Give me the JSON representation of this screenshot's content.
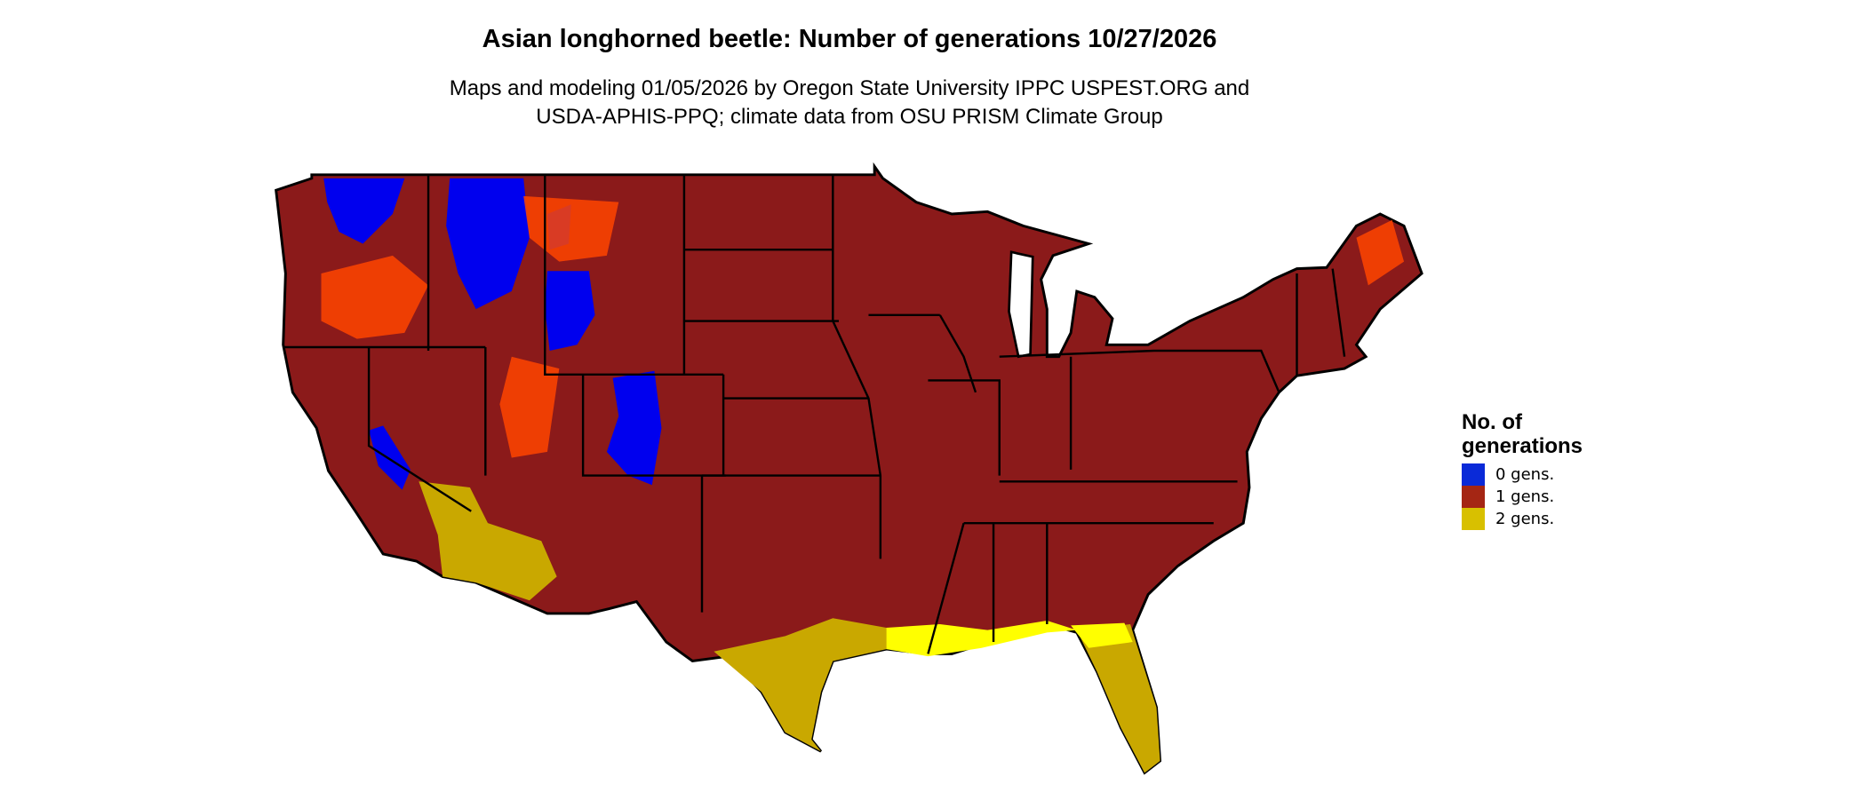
{
  "title": "Asian longhorned beetle: Number of generations 10/27/2026",
  "subtitle": {
    "line1": "Maps and modeling 01/05/2026 by Oregon State University IPPC USPEST.ORG and",
    "line2": "USDA-APHIS-PPQ; climate data from OSU PRISM Climate Group"
  },
  "legend": {
    "title_line1": "No. of",
    "title_line2": "generations",
    "items": [
      {
        "label": "0 gens.",
        "color": "#0a2ad8"
      },
      {
        "label": "1 gens.",
        "color": "#a52614"
      },
      {
        "label": "2 gens.",
        "color": "#d8c000"
      }
    ]
  },
  "map_colors": {
    "base": "#8b1a1a",
    "zero": "#0000ee",
    "transition": "#ff4500",
    "two": "#c9a800",
    "two_bright": "#ffff00"
  }
}
